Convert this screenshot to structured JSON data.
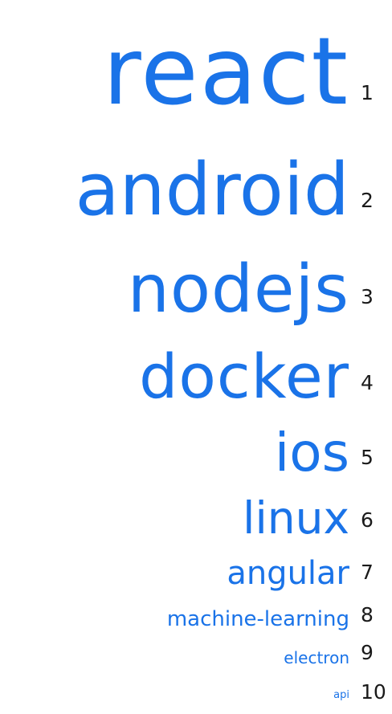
{
  "tags": [
    {
      "name": "react",
      "rank": "1"
    },
    {
      "name": "android",
      "rank": "2"
    },
    {
      "name": "nodejs",
      "rank": "3"
    },
    {
      "name": "docker",
      "rank": "4"
    },
    {
      "name": "ios",
      "rank": "5"
    },
    {
      "name": "linux",
      "rank": "6"
    },
    {
      "name": "angular",
      "rank": "7"
    },
    {
      "name": "machine-learning",
      "rank": "8"
    },
    {
      "name": "electron",
      "rank": "9"
    },
    {
      "name": "api",
      "rank": "10"
    }
  ],
  "colors": {
    "tag": "#1a73e8",
    "rank": "#1a1a1a",
    "background": "#ffffff"
  }
}
